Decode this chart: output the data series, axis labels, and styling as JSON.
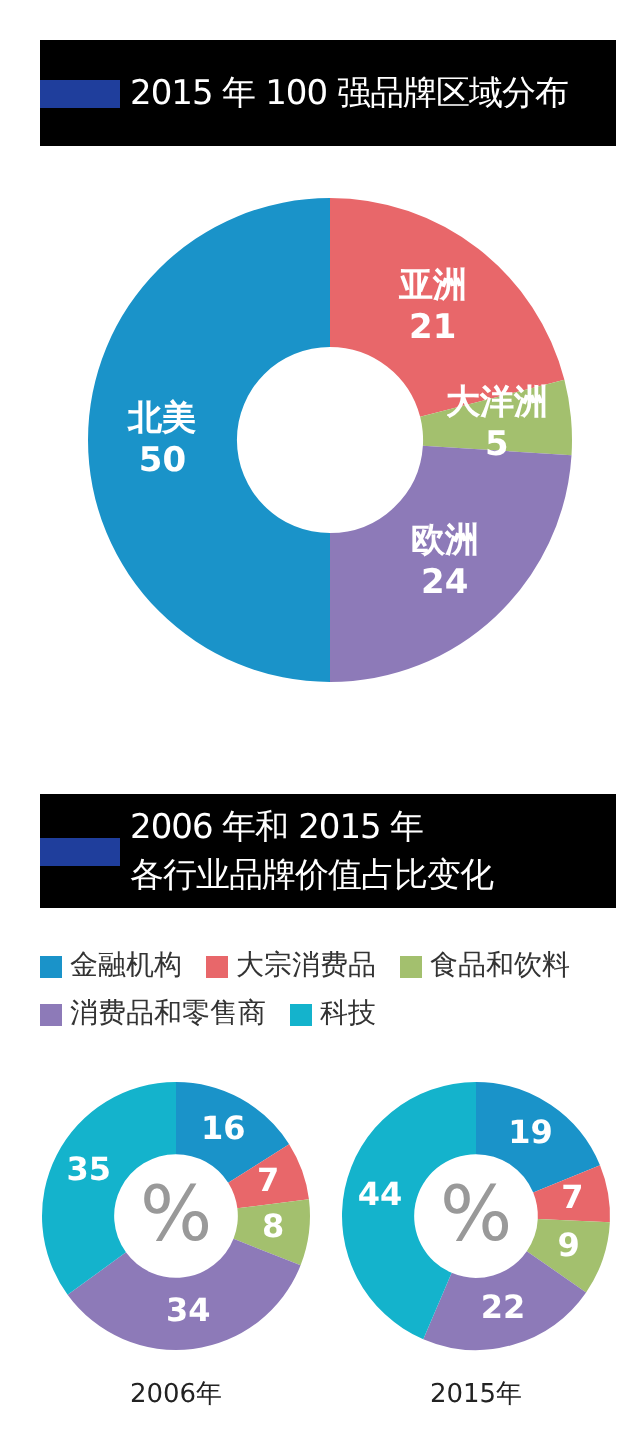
{
  "chart_data": [
    {
      "type": "donut",
      "title": "2015 年 100 强品牌区域分布",
      "categories": [
        "亚洲",
        "大洋洲",
        "欧洲",
        "北美"
      ],
      "values": [
        21,
        5,
        24,
        50
      ],
      "colors": [
        "#e8676a",
        "#a3c06e",
        "#8d7ab8",
        "#1a93c9"
      ],
      "data_labels": true,
      "legend": false
    },
    {
      "type": "donut",
      "title": "2006 年和 2015 年",
      "subtitle": "各行业品牌价值占比变化",
      "xlabel": "2006年",
      "annotations": [
        "%"
      ],
      "categories": [
        "金融机构",
        "大宗消费品",
        "食品和饮料",
        "消费品和零售商",
        "科技"
      ],
      "values": [
        16,
        7,
        8,
        34,
        35
      ],
      "colors": [
        "#1a93c9",
        "#e8676a",
        "#a3c06e",
        "#8d7ab8",
        "#14b3cc"
      ],
      "data_labels": true,
      "legend": "top"
    },
    {
      "type": "donut",
      "xlabel": "2015年",
      "annotations": [
        "%"
      ],
      "categories": [
        null,
        null,
        null,
        null,
        null
      ],
      "values": [
        19,
        7,
        9,
        22,
        44
      ],
      "colors": [
        "#1a93c9",
        "#e8676a",
        "#a3c06e",
        "#8d7ab8",
        "#14b3cc"
      ],
      "data_labels": true
    }
  ]
}
